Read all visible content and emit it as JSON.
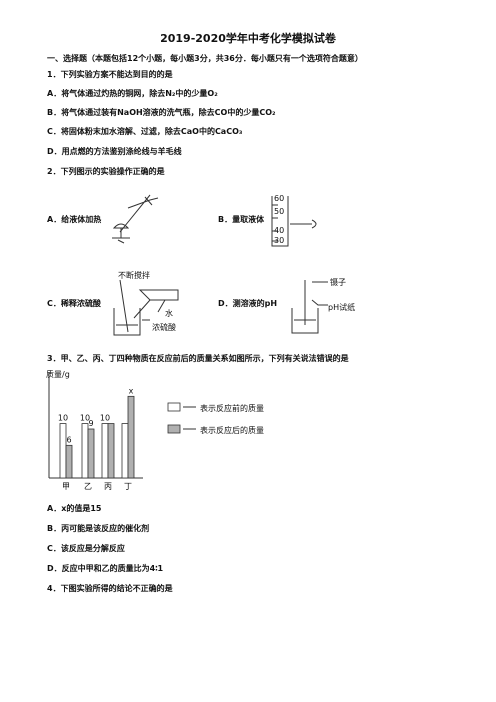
{
  "header": {
    "title": "2019-2020学年中考化学模拟试卷"
  },
  "section": "一、选择题（本题包括12个小题，每小题3分，共36分．每小题只有一个选项符合题意）",
  "questions": [
    {
      "stem": "1．下列实验方案不能达到目的的是",
      "options": [
        "A．将气体通过灼热的铜网，除去N₂中的少量O₂",
        "B．将气体通过装有NaOH溶液的洗气瓶，除去CO中的少量CO₂",
        "C．将固体粉末加水溶解、过滤，除去CaO中的CaCO₃",
        "D．用点燃的方法鉴别涤纶线与羊毛线"
      ]
    },
    {
      "stem": "2．下列图示的实验操作正确的是",
      "options": [
        "A．给液体加热",
        "B．量取液体",
        "C．稀释浓硫酸",
        "D．测溶液的pH"
      ],
      "figure_labels": {
        "cylinder_marks": [
          "60",
          "50",
          "40",
          "30"
        ],
        "stir": "不断搅拌",
        "water": "水",
        "acid": "浓硫酸",
        "tweezers": "镊子",
        "ph_paper": "pH试纸"
      }
    },
    {
      "stem": "3．甲、乙、丙、丁四种物质在反应前后的质量关系如图所示，下列有关说法错误的是",
      "options": [
        "A．x的值是15",
        "B．丙可能是该反应的催化剂",
        "C．该反应是分解反应",
        "D．反应中甲和乙的质量比为4∶1"
      ]
    },
    {
      "stem": "4．下图实验所得的结论不正确的是"
    }
  ],
  "chart_data": {
    "type": "bar",
    "y_label": "质量/g",
    "categories": [
      "甲",
      "乙",
      "丙",
      "丁"
    ],
    "ylim": [
      0,
      18
    ],
    "series": [
      {
        "name": "表示反应前的质量",
        "color": "#ffffff",
        "values": [
          10,
          10,
          10,
          10
        ],
        "value_labels": [
          "10",
          "10",
          "10",
          null
        ]
      },
      {
        "name": "表示反应后的质量",
        "color": "#b0b0b0",
        "values": [
          6,
          9,
          10,
          15
        ],
        "value_labels": [
          "6",
          "9",
          null,
          "x"
        ]
      }
    ]
  }
}
